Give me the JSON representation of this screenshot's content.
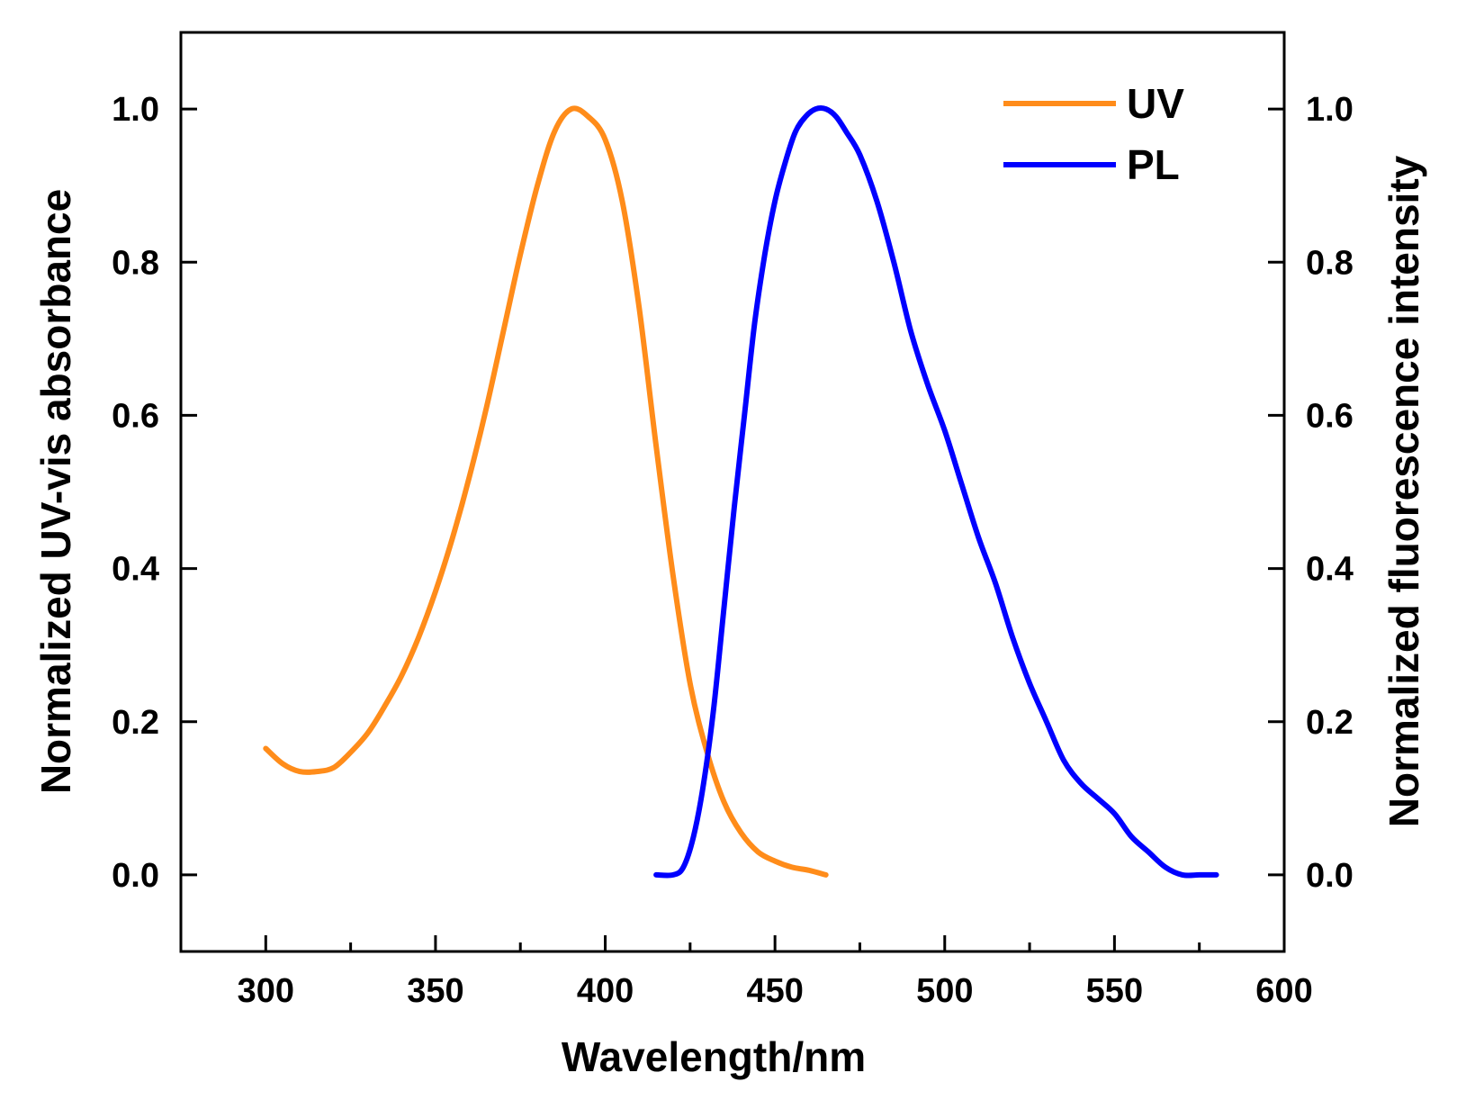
{
  "chart_data": {
    "type": "line",
    "title": "",
    "xlabel": "Wavelength/nm",
    "ylabel_left": "Normalized UV-vis absorbance",
    "ylabel_right": "Normalized fluorescence intensity",
    "xlim": [
      275,
      600
    ],
    "ylim": [
      -0.1,
      1.1
    ],
    "x_ticks": [
      300,
      350,
      400,
      450,
      500,
      550,
      600
    ],
    "x_tick_labels": [
      "300",
      "350",
      "400",
      "450",
      "500",
      "550",
      "600"
    ],
    "y_ticks": [
      0.0,
      0.2,
      0.4,
      0.6,
      0.8,
      1.0
    ],
    "y_tick_labels": [
      "0.0",
      "0.2",
      "0.4",
      "0.6",
      "0.8",
      "1.0"
    ],
    "grid": false,
    "legend_position": "top-right",
    "series": [
      {
        "name": "UV",
        "color": "#FF8C1A",
        "axis": "left",
        "x": [
          300,
          305,
          310,
          315,
          320,
          325,
          330,
          335,
          340,
          345,
          350,
          355,
          360,
          365,
          370,
          375,
          380,
          385,
          390,
          395,
          400,
          405,
          410,
          415,
          420,
          425,
          430,
          435,
          440,
          445,
          450,
          455,
          460,
          465
        ],
        "values": [
          0.165,
          0.145,
          0.135,
          0.135,
          0.14,
          0.16,
          0.185,
          0.22,
          0.26,
          0.31,
          0.37,
          0.44,
          0.52,
          0.61,
          0.71,
          0.81,
          0.9,
          0.97,
          1.0,
          0.99,
          0.96,
          0.88,
          0.74,
          0.56,
          0.39,
          0.25,
          0.16,
          0.095,
          0.055,
          0.03,
          0.018,
          0.01,
          0.006,
          0.0
        ]
      },
      {
        "name": "PL",
        "color": "#0000FF",
        "axis": "right",
        "x": [
          415,
          420,
          423,
          426,
          429,
          432,
          435,
          438,
          441,
          444,
          447,
          450,
          453,
          456,
          459,
          462,
          465,
          468,
          471,
          475,
          480,
          485,
          490,
          495,
          500,
          505,
          510,
          515,
          520,
          525,
          530,
          535,
          540,
          545,
          550,
          555,
          560,
          565,
          570,
          575,
          580
        ],
        "values": [
          0.0,
          0.0,
          0.01,
          0.05,
          0.12,
          0.22,
          0.35,
          0.48,
          0.6,
          0.72,
          0.81,
          0.88,
          0.93,
          0.97,
          0.99,
          1.0,
          1.0,
          0.99,
          0.97,
          0.94,
          0.88,
          0.8,
          0.71,
          0.64,
          0.58,
          0.51,
          0.44,
          0.38,
          0.31,
          0.25,
          0.2,
          0.15,
          0.12,
          0.1,
          0.08,
          0.05,
          0.03,
          0.01,
          0.0,
          0.0,
          0.0
        ]
      }
    ]
  }
}
